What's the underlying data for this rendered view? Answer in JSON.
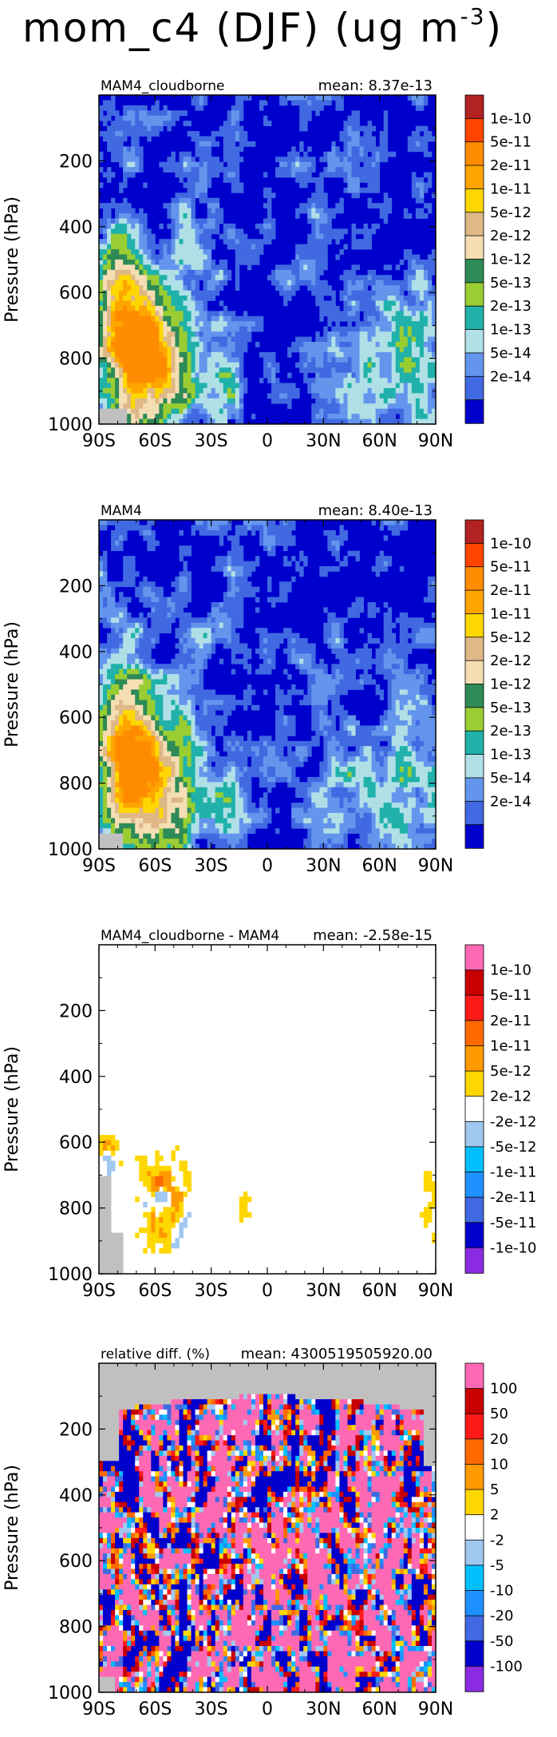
{
  "title": {
    "text": "mom_c4 (DJF) (ug m",
    "exponent": "-3",
    "close": ")"
  },
  "chart_data": [
    {
      "type": "heatmap",
      "left_label": "MAM4_cloudborne",
      "right_label": "mean: 8.37e-13",
      "xlabel": "",
      "ylabel": "Pressure (hPa)",
      "x_ticks": [
        "90S",
        "60S",
        "30S",
        "0",
        "30N",
        "60N",
        "90N"
      ],
      "y_ticks": [
        "200",
        "400",
        "600",
        "800",
        "1000"
      ],
      "xlim": [
        -90,
        90
      ],
      "ylim": [
        1000,
        0
      ],
      "colorbar_labels": [
        "1e-10",
        "5e-11",
        "2e-11",
        "1e-11",
        "5e-12",
        "2e-12",
        "1e-12",
        "5e-13",
        "2e-13",
        "1e-13",
        "5e-14",
        "2e-14"
      ],
      "colorbar_colors": [
        "#b22222",
        "#ff4500",
        "#ff8c00",
        "#ffa500",
        "#ffd700",
        "#deb887",
        "#f5deb3",
        "#2e8b57",
        "#9acd32",
        "#20b2aa",
        "#b0e0e6",
        "#6495ed",
        "#4169e1",
        "#0000cd"
      ],
      "field": "base"
    },
    {
      "type": "heatmap",
      "left_label": "MAM4",
      "right_label": "mean: 8.40e-13",
      "xlabel": "",
      "ylabel": "Pressure (hPa)",
      "x_ticks": [
        "90S",
        "60S",
        "30S",
        "0",
        "30N",
        "60N",
        "90N"
      ],
      "y_ticks": [
        "200",
        "400",
        "600",
        "800",
        "1000"
      ],
      "xlim": [
        -90,
        90
      ],
      "ylim": [
        1000,
        0
      ],
      "colorbar_labels": [
        "1e-10",
        "5e-11",
        "2e-11",
        "1e-11",
        "5e-12",
        "2e-12",
        "1e-12",
        "5e-13",
        "2e-13",
        "1e-13",
        "5e-14",
        "2e-14"
      ],
      "colorbar_colors": [
        "#b22222",
        "#ff4500",
        "#ff8c00",
        "#ffa500",
        "#ffd700",
        "#deb887",
        "#f5deb3",
        "#2e8b57",
        "#9acd32",
        "#20b2aa",
        "#b0e0e6",
        "#6495ed",
        "#4169e1",
        "#0000cd"
      ],
      "field": "base2"
    },
    {
      "type": "heatmap",
      "left_label": "MAM4_cloudborne - MAM4",
      "right_label": "mean: -2.58e-15",
      "xlabel": "",
      "ylabel": "Pressure (hPa)",
      "x_ticks": [
        "90S",
        "60S",
        "30S",
        "0",
        "30N",
        "60N",
        "90N"
      ],
      "y_ticks": [
        "200",
        "400",
        "600",
        "800",
        "1000"
      ],
      "xlim": [
        -90,
        90
      ],
      "ylim": [
        1000,
        0
      ],
      "colorbar_labels": [
        "1e-10",
        "5e-11",
        "2e-11",
        "1e-11",
        "5e-12",
        "2e-12",
        "-2e-12",
        "-5e-12",
        "-1e-11",
        "-2e-11",
        "-5e-11",
        "-1e-10"
      ],
      "colorbar_colors": [
        "#ff69b4",
        "#c80000",
        "#ff1a1a",
        "#ff6a00",
        "#ff9900",
        "#ffd700",
        "#ffffff",
        "#a0c8f0",
        "#00bfff",
        "#1e90ff",
        "#4169e1",
        "#0000cd",
        "#8a2be2"
      ],
      "field": "diff"
    },
    {
      "type": "heatmap",
      "left_label": "relative diff. (%)",
      "right_label": "mean: 4300519505920.00",
      "xlabel": "",
      "ylabel": "Pressure (hPa)",
      "x_ticks": [
        "90S",
        "60S",
        "30S",
        "0",
        "30N",
        "60N",
        "90N"
      ],
      "y_ticks": [
        "200",
        "400",
        "600",
        "800",
        "1000"
      ],
      "xlim": [
        -90,
        90
      ],
      "ylim": [
        1000,
        0
      ],
      "colorbar_labels": [
        "100",
        "50",
        "20",
        "10",
        "5",
        "2",
        "-2",
        "-5",
        "-10",
        "-20",
        "-50",
        "-100"
      ],
      "colorbar_colors": [
        "#ff69b4",
        "#c80000",
        "#ff1a1a",
        "#ff6a00",
        "#ff9900",
        "#ffd700",
        "#ffffff",
        "#a0c8f0",
        "#00bfff",
        "#1e90ff",
        "#4169e1",
        "#0000cd",
        "#8a2be2"
      ],
      "field": "rel"
    }
  ]
}
